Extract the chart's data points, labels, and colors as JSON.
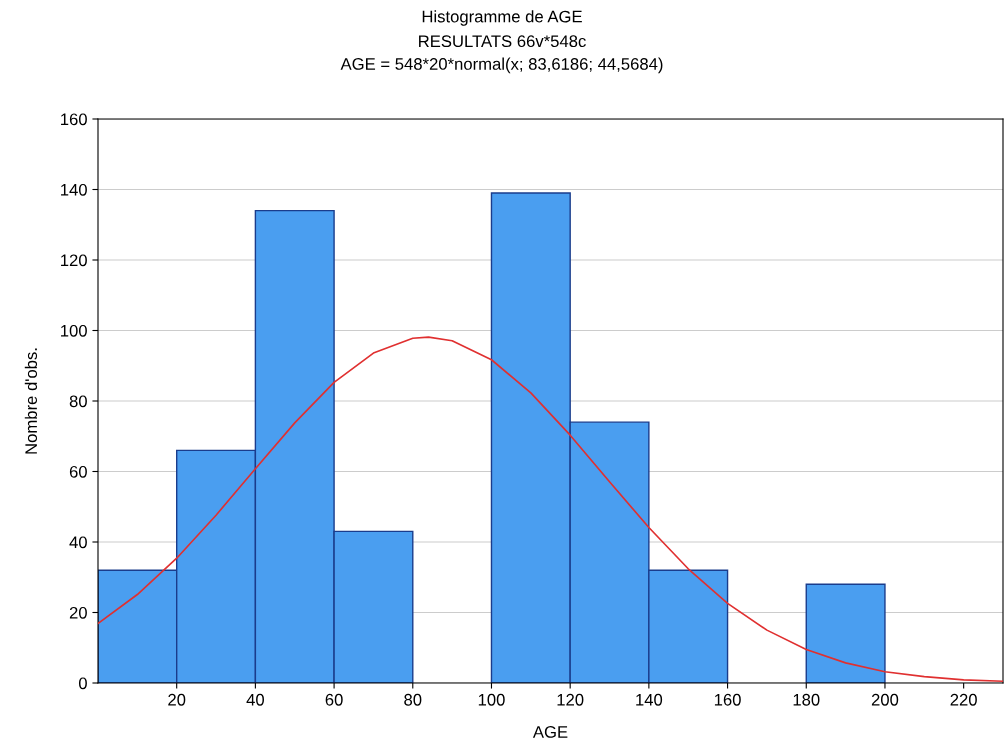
{
  "chart_data": {
    "type": "histogram",
    "title": "Histogramme de AGE",
    "subtitle": "RESULTATS 66v*548c\nAGE = 548*20*normal(x; 83,6186; 44,5684)",
    "xlabel": "AGE",
    "ylabel": "Nombre d'obs.",
    "bins": [
      0,
      20,
      40,
      60,
      80,
      100,
      120,
      140,
      160,
      180,
      200,
      220
    ],
    "values": [
      32,
      66,
      134,
      43,
      0,
      139,
      74,
      32,
      0,
      28,
      0
    ],
    "color": "#4a9ef0",
    "series": [
      {
        "type": "line",
        "color": "#e03030",
        "x": [
          0,
          10,
          20,
          30,
          40,
          50,
          60,
          70,
          80,
          84,
          90,
          100,
          110,
          120,
          130,
          140,
          150,
          160,
          170,
          180,
          190,
          200,
          210,
          220,
          230
        ],
        "values": [
          16.9,
          25.1,
          35.4,
          47.6,
          60.8,
          73.8,
          85.3,
          93.6,
          97.8,
          98.1,
          97.1,
          91.7,
          82.3,
          70.3,
          57.1,
          44.1,
          32.4,
          22.6,
          15.0,
          9.5,
          5.7,
          3.2,
          1.8,
          0.9,
          0.5
        ]
      }
    ],
    "xlim": [
      0,
      230
    ],
    "xticks": [
      20,
      40,
      60,
      80,
      100,
      120,
      140,
      160,
      180,
      200,
      220
    ],
    "ylim": [
      0,
      160
    ],
    "yticks": [
      0,
      20,
      40,
      60,
      80,
      100,
      120,
      140,
      160
    ],
    "grid": "y"
  }
}
